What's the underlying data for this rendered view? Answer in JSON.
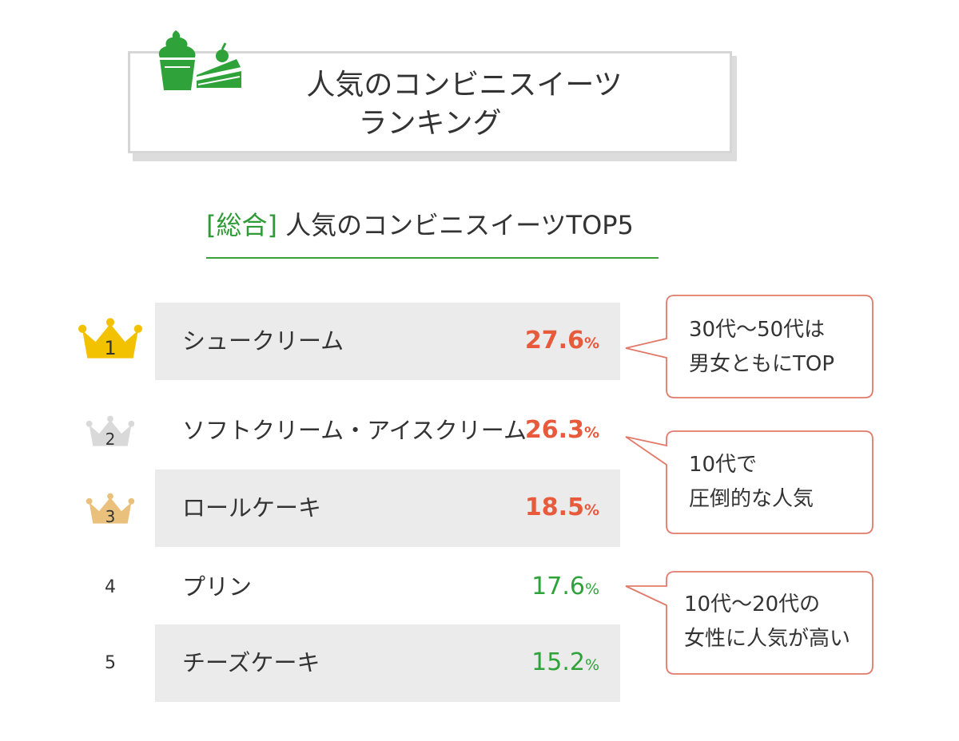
{
  "header": {
    "title_line1": "人気のコンビニスイーツ",
    "title_line2": "ランキング",
    "icon": "soft-serve-and-cake-icon"
  },
  "subtitle": {
    "bracket": "[総合]",
    "text": "人気のコンビニスイーツTOP5"
  },
  "colors": {
    "accent_green": "#2fa33a",
    "value_red": "#e85a3c",
    "value_green": "#2fa33a",
    "gold": "#f2c200",
    "silver": "#d9d9d9",
    "bronze": "#e9c07c",
    "callout_border": "#e27a6a"
  },
  "chart_data": {
    "type": "bar",
    "title": "[総合] 人気のコンビニスイーツTOP5",
    "categories": [
      "シュークリーム",
      "ソフトクリーム・アイスクリーム",
      "ロールケーキ",
      "プリン",
      "チーズケーキ"
    ],
    "ranks": [
      "1",
      "2",
      "3",
      "4",
      "5"
    ],
    "values": [
      27.6,
      26.3,
      18.5,
      17.6,
      15.2
    ],
    "value_labels": [
      "27.6",
      "26.3",
      "18.5",
      "17.6",
      "15.2"
    ],
    "unit": "%",
    "annotations": [
      {
        "lines": [
          "30代～50代は",
          "男女ともにTOP"
        ]
      },
      {
        "lines": [
          "10代で",
          "圧倒的な人気"
        ]
      },
      {
        "lines": [
          "10代～20代の",
          "女性に人気が高い"
        ]
      }
    ]
  }
}
